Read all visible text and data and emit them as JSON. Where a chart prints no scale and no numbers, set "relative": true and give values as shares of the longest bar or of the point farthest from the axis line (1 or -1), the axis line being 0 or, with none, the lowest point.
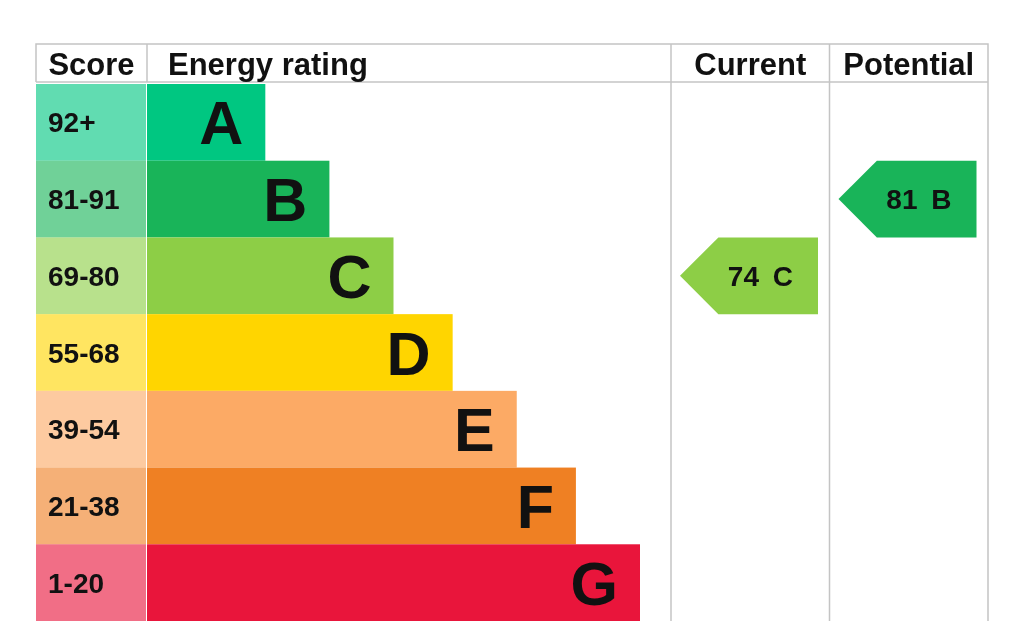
{
  "chart_data": [
    {
      "type": "bar",
      "orientation": "horizontal",
      "relative": true,
      "ylabel": "Score",
      "xlabel": "Energy rating",
      "categories": [
        "92+",
        "81-91",
        "69-80",
        "55-68",
        "39-54",
        "21-38",
        "1-20"
      ],
      "values": [
        0.24,
        0.37,
        0.5,
        0.62,
        0.75,
        0.87,
        1
      ],
      "colors": [
        "#00c781",
        "#19b459",
        "#8dce46",
        "#ffd500",
        "#fcaa65",
        "#ef8023",
        "#e9153b"
      ],
      "annotations": [
        {
          "text": "A",
          "x": 0.24,
          "y": "92+"
        },
        {
          "text": "B",
          "x": 0.37,
          "y": "81-91"
        },
        {
          "text": "C",
          "x": 0.5,
          "y": "69-80"
        },
        {
          "text": "D",
          "x": 0.62,
          "y": "55-68"
        },
        {
          "text": "E",
          "x": 0.75,
          "y": "39-54"
        },
        {
          "text": "F",
          "x": 0.87,
          "y": "21-38"
        },
        {
          "text": "G",
          "x": 1,
          "y": "1-20"
        }
      ]
    },
    {
      "type": "heatmap",
      "categories": [
        "Current",
        "Potential"
      ],
      "y_categories": [
        "81-91",
        "69-80"
      ],
      "tick_labels": "x",
      "cells": [
        [
          null,
          81
        ],
        [
          74,
          null
        ]
      ],
      "cell_labels": [
        [
          null,
          "81 B"
        ],
        [
          "74 C",
          null
        ]
      ]
    }
  ]
}
